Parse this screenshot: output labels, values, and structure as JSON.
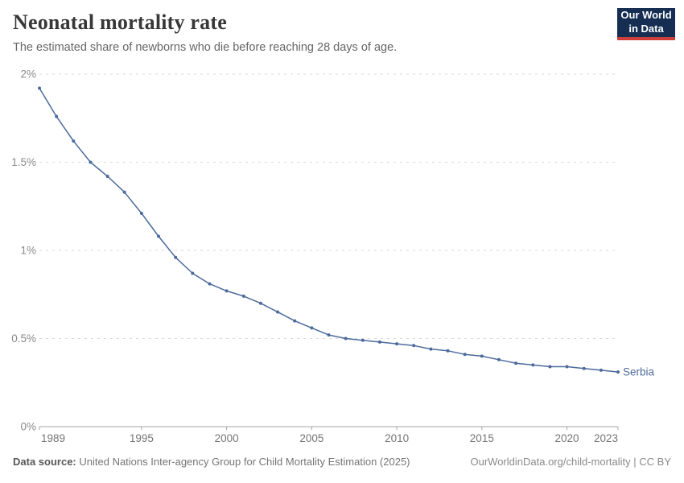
{
  "header": {
    "title": "Neonatal mortality rate",
    "subtitle": "The estimated share of newborns who die before reaching 28 days of age.",
    "logo": {
      "line1": "Our World",
      "line2": "in Data"
    }
  },
  "chart_data": {
    "type": "line",
    "title": "Neonatal mortality rate",
    "unit": "%",
    "x": [
      1989,
      1990,
      1991,
      1992,
      1993,
      1994,
      1995,
      1996,
      1997,
      1998,
      1999,
      2000,
      2001,
      2002,
      2003,
      2004,
      2005,
      2006,
      2007,
      2008,
      2009,
      2010,
      2011,
      2012,
      2013,
      2014,
      2015,
      2016,
      2017,
      2018,
      2019,
      2020,
      2021,
      2022,
      2023
    ],
    "series": [
      {
        "name": "Serbia",
        "color": "#4c6a9c",
        "values": [
          1.92,
          1.76,
          1.62,
          1.5,
          1.42,
          1.33,
          1.21,
          1.08,
          0.96,
          0.87,
          0.81,
          0.77,
          0.74,
          0.7,
          0.65,
          0.6,
          0.56,
          0.52,
          0.5,
          0.49,
          0.48,
          0.47,
          0.46,
          0.44,
          0.43,
          0.41,
          0.4,
          0.38,
          0.36,
          0.35,
          0.34,
          0.34,
          0.33,
          0.32,
          0.31
        ]
      }
    ],
    "xlim": [
      1989,
      2023
    ],
    "ylim": [
      0,
      2
    ],
    "x_ticks": [
      1989,
      1995,
      2000,
      2005,
      2010,
      2015,
      2020,
      2023
    ],
    "y_ticks": [
      0,
      0.5,
      1,
      1.5,
      2
    ],
    "y_tick_labels": [
      "0%",
      "0.5%",
      "1%",
      "1.5%",
      "2%"
    ],
    "grid": "horizontal-dashed",
    "legend_position": "line-end-label",
    "end_label": "Serbia"
  },
  "footer": {
    "datasource_label": "Data source:",
    "datasource_text": "United Nations Inter-agency Group for Child Mortality Estimation (2025)",
    "link": "OurWorldinData.org/child-mortality | CC BY"
  },
  "colors": {
    "accent_blue": "#4c6a9c",
    "logo_navy": "#152e52",
    "logo_red": "#ce3e3b",
    "gridline": "#dadada",
    "axis_line": "#a5a5a5",
    "y_tick_label": "#8a8a8a",
    "x_tick_label": "#757575",
    "title_text": "#373737",
    "subtitle_text": "#666666"
  }
}
